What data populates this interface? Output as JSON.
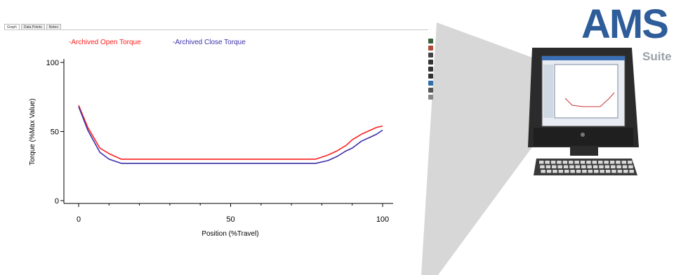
{
  "tabs": [
    {
      "label": "Graph",
      "active": true
    },
    {
      "label": "Data Points",
      "active": false
    },
    {
      "label": "Notes",
      "active": false
    }
  ],
  "toolbar_icons": [
    {
      "name": "grid-icon",
      "color": "#3a5f3a"
    },
    {
      "name": "edit-icon",
      "color": "#b04a3a"
    },
    {
      "name": "chart-icon",
      "color": "#444444"
    },
    {
      "name": "zoom-in-icon",
      "color": "#333333"
    },
    {
      "name": "zoom-out-icon",
      "color": "#333333"
    },
    {
      "name": "pan-icon",
      "color": "#333333"
    },
    {
      "name": "save-icon",
      "color": "#2f6ea8"
    },
    {
      "name": "print-icon",
      "color": "#555555"
    },
    {
      "name": "copy-icon",
      "color": "#888888"
    }
  ],
  "brand": {
    "name": "AMS",
    "suffix": "Suite",
    "color": "#2e5d9a",
    "suffix_color": "#9aa1a8"
  },
  "chart_data": {
    "type": "line",
    "title": "",
    "xlabel": "Position (%Travel)",
    "ylabel": "Torque (%Max Value)",
    "xlim": [
      0,
      100
    ],
    "ylim": [
      0,
      100
    ],
    "x_ticks": [
      0,
      50,
      100
    ],
    "y_ticks": [
      0,
      50,
      100
    ],
    "grid": false,
    "legend_position": "top",
    "series": [
      {
        "name": "Archived Open Torque",
        "legend_label": "-Archived Open Torque",
        "color": "#ff2020",
        "points": [
          [
            0,
            69
          ],
          [
            3,
            53
          ],
          [
            7,
            38
          ],
          [
            10,
            34
          ],
          [
            14,
            30
          ],
          [
            20,
            30
          ],
          [
            40,
            30
          ],
          [
            60,
            30
          ],
          [
            78,
            30
          ],
          [
            82,
            33
          ],
          [
            85,
            36
          ],
          [
            88,
            40
          ],
          [
            90,
            44
          ],
          [
            93,
            48
          ],
          [
            96,
            51
          ],
          [
            98,
            53
          ],
          [
            100,
            54
          ]
        ]
      },
      {
        "name": "Archived Close Torque",
        "legend_label": "-Archived Close Torque",
        "color": "#3a2fa8",
        "points": [
          [
            0,
            68
          ],
          [
            3,
            51
          ],
          [
            7,
            35
          ],
          [
            10,
            30
          ],
          [
            14,
            27
          ],
          [
            20,
            27
          ],
          [
            40,
            27
          ],
          [
            60,
            27
          ],
          [
            78,
            27
          ],
          [
            82,
            29
          ],
          [
            85,
            32
          ],
          [
            88,
            36
          ],
          [
            90,
            38
          ],
          [
            93,
            43
          ],
          [
            96,
            46
          ],
          [
            98,
            48
          ],
          [
            100,
            51
          ]
        ]
      }
    ]
  }
}
